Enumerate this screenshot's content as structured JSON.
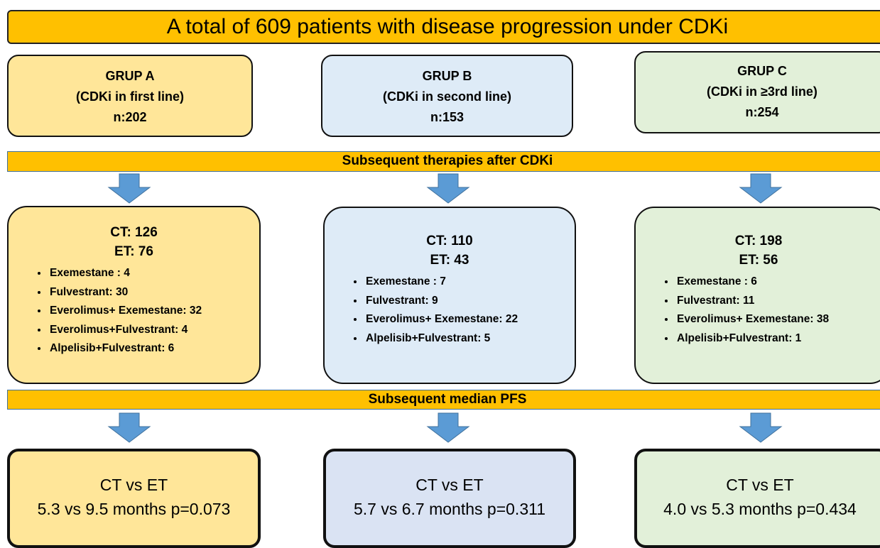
{
  "header": {
    "title": "A total of 609 patients with disease progression under CDKi"
  },
  "groups": [
    {
      "name": "GRUP A",
      "description": "(CDKi in first line)",
      "n": "n:202"
    },
    {
      "name": "GRUP B",
      "description": "(CDKi in second line)",
      "n": "n:153"
    },
    {
      "name": "GRUP C",
      "description": "(CDKi in ≥3rd line)",
      "n": "n:254"
    }
  ],
  "therapies_band": "Subsequent therapies after CDKi",
  "therapies": [
    {
      "ct": "CT: 126",
      "et": "ET: 76",
      "items": [
        "Exemestane : 4",
        "Fulvestrant: 30",
        "Everolimus+ Exemestane: 32",
        "Everolimus+Fulvestrant: 4",
        "Alpelisib+Fulvestrant: 6"
      ]
    },
    {
      "ct": "CT: 110",
      "et": "ET: 43",
      "items": [
        "Exemestane : 7",
        "Fulvestrant: 9",
        "Everolimus+ Exemestane: 22",
        "Alpelisib+Fulvestrant: 5"
      ]
    },
    {
      "ct": "CT: 198",
      "et": "ET: 56",
      "items": [
        "Exemestane : 6",
        "Fulvestrant: 11",
        "Everolimus+ Exemestane: 38",
        "Alpelisib+Fulvestrant: 1"
      ]
    }
  ],
  "pfs_band": "Subsequent median PFS",
  "pfs": [
    {
      "comparison": "CT vs ET",
      "result": "5.3 vs 9.5 months p=0.073"
    },
    {
      "comparison": "CT vs ET",
      "result": "5.7 vs 6.7 months p=0.311"
    },
    {
      "comparison": "CT vs ET",
      "result": "4.0 vs 5.3 months p=0.434"
    }
  ]
}
